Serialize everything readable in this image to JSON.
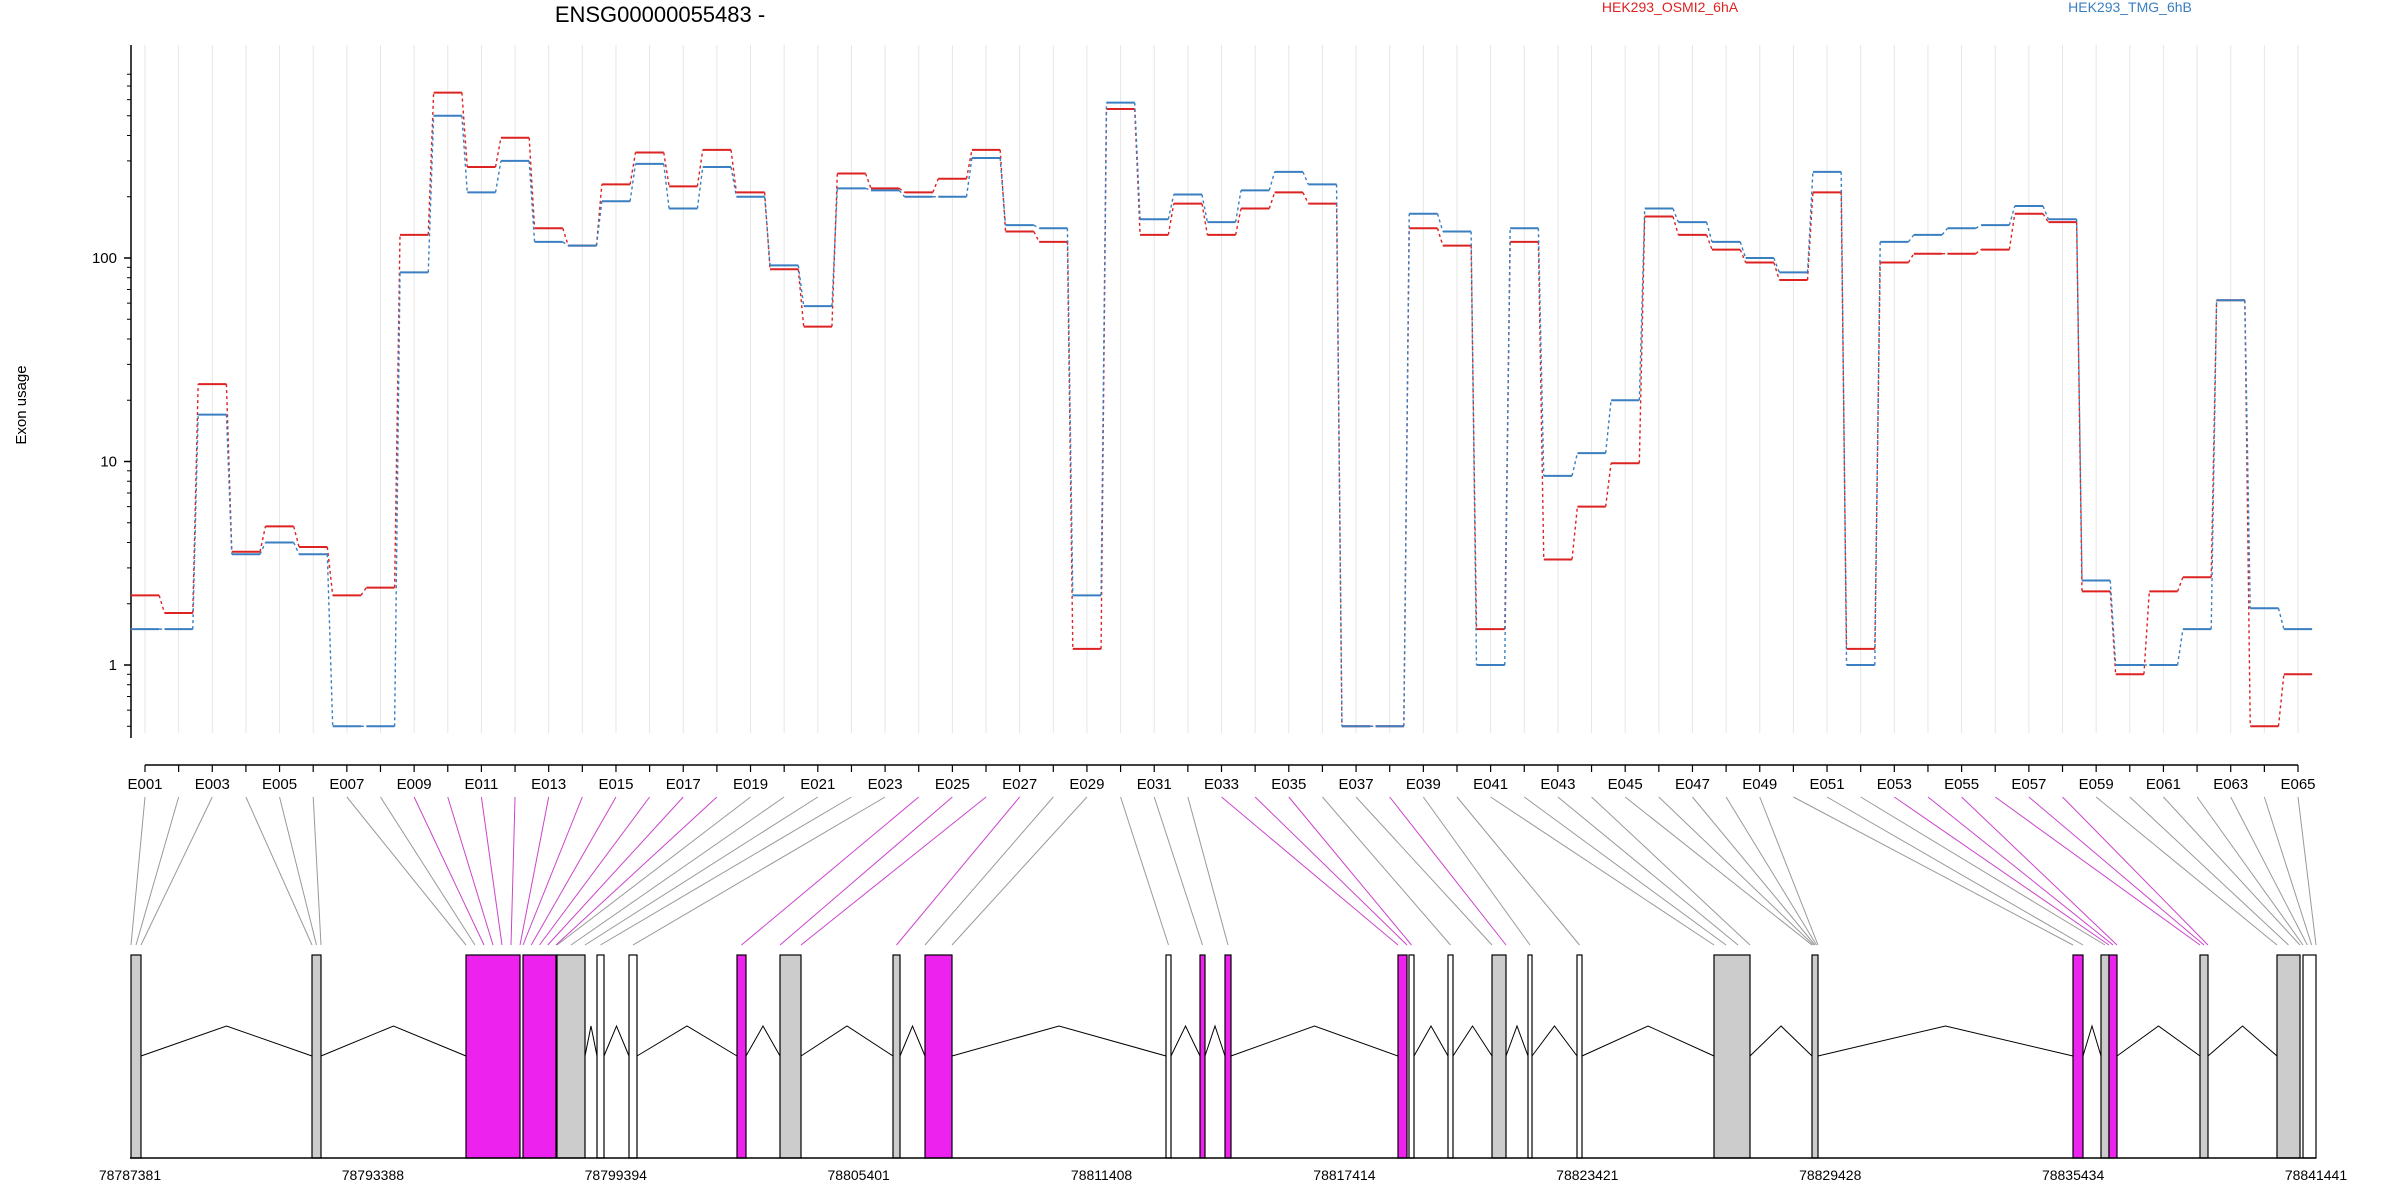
{
  "chart_data": {
    "type": "line",
    "title": "ENSG00000055483 -",
    "ylabel": "Exon usage",
    "yscale": "log",
    "yticks": [
      "1",
      "10",
      "100"
    ],
    "ylim": [
      0.5,
      850
    ],
    "colors": {
      "HEK293_OSMI2_6hA": "#dd2222",
      "HEK293_TMG_6hB": "#3a7fc1",
      "highlight": "#ee22ee",
      "box": "#cccccc"
    },
    "x_tick_labels": [
      "E001",
      "E003",
      "E005",
      "E007",
      "E009",
      "E011",
      "E013",
      "E015",
      "E017",
      "E019",
      "E021",
      "E023",
      "E025",
      "E027",
      "E029",
      "E031",
      "E033",
      "E035",
      "E037",
      "E039",
      "E041",
      "E043",
      "E045",
      "E047",
      "E049",
      "E051",
      "E053",
      "E055",
      "E057",
      "E059",
      "E061",
      "E063",
      "E065"
    ],
    "exons": [
      "E001",
      "E002",
      "E003",
      "E004",
      "E005",
      "E006",
      "E007",
      "E008",
      "E009",
      "E010",
      "E011",
      "E012",
      "E013",
      "E014",
      "E015",
      "E016",
      "E017",
      "E018",
      "E019",
      "E020",
      "E021",
      "E022",
      "E023",
      "E024",
      "E025",
      "E026",
      "E027",
      "E028",
      "E029",
      "E030",
      "E031",
      "E032",
      "E033",
      "E034",
      "E035",
      "E036",
      "E037",
      "E038",
      "E039",
      "E040",
      "E041",
      "E042",
      "E043",
      "E044",
      "E045",
      "E046",
      "E047",
      "E048",
      "E049",
      "E050",
      "E051",
      "E052",
      "E053",
      "E054",
      "E055",
      "E056",
      "E057",
      "E058",
      "E059",
      "E060",
      "E061",
      "E062",
      "E063",
      "E064",
      "E065"
    ],
    "series": [
      {
        "name": "HEK293_OSMI2_6hA",
        "values": [
          2.2,
          1.8,
          24,
          3.6,
          4.8,
          3.8,
          2.2,
          2.4,
          130,
          650,
          280,
          390,
          140,
          115,
          230,
          330,
          225,
          340,
          210,
          88,
          46,
          260,
          220,
          210,
          245,
          340,
          135,
          120,
          1.2,
          540,
          130,
          185,
          130,
          175,
          210,
          185,
          0.5,
          0.5,
          140,
          115,
          1.5,
          120,
          3.3,
          6,
          9.8,
          160,
          130,
          110,
          95,
          78,
          210,
          1.2,
          95,
          105,
          105,
          110,
          165,
          150,
          2.3,
          0.9,
          2.3,
          2.7,
          62,
          0.5,
          0.9
        ]
      },
      {
        "name": "HEK293_TMG_6hB",
        "values": [
          1.5,
          1.5,
          17,
          3.5,
          4,
          3.5,
          0.5,
          0.5,
          85,
          500,
          210,
          300,
          120,
          115,
          190,
          290,
          175,
          280,
          200,
          92,
          58,
          220,
          215,
          200,
          200,
          310,
          145,
          140,
          2.2,
          580,
          155,
          205,
          150,
          215,
          265,
          230,
          0.5,
          0.5,
          165,
          135,
          1,
          140,
          8.5,
          11,
          20,
          175,
          150,
          120,
          100,
          85,
          265,
          1,
          120,
          130,
          140,
          145,
          180,
          155,
          2.6,
          1,
          1,
          1.5,
          62,
          1.9,
          1.5
        ]
      }
    ],
    "coordinate_labels": [
      "78787381",
      "78793388",
      "78799394",
      "78805401",
      "78811408",
      "78817414",
      "78823421",
      "78829428",
      "78835434",
      "78841441"
    ],
    "highlighted_exons": [
      "E009",
      "E010",
      "E011",
      "E012",
      "E013",
      "E014",
      "E015",
      "E016",
      "E017",
      "E018",
      "E024",
      "E025",
      "E026",
      "E027",
      "E033",
      "E034",
      "E035",
      "E038",
      "E053",
      "E054",
      "E055",
      "E056",
      "E057",
      "E058"
    ]
  }
}
